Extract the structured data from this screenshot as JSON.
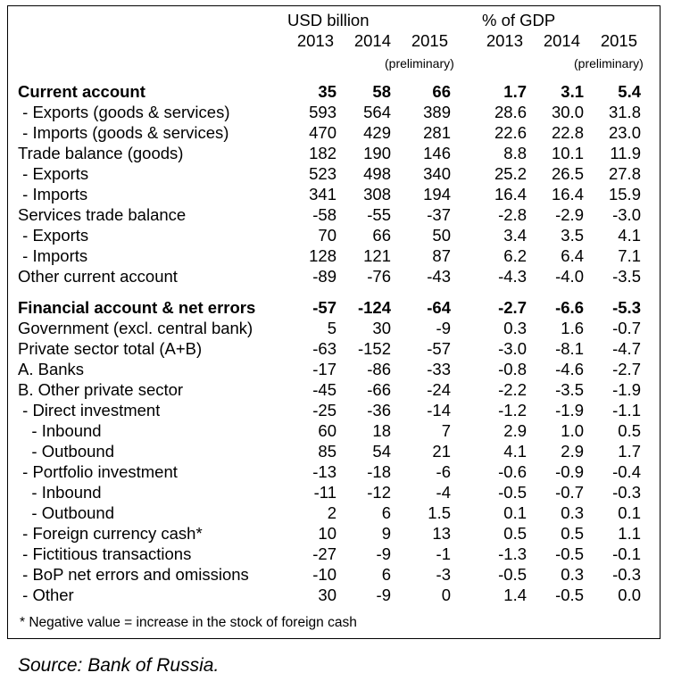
{
  "header": {
    "usd_label": "USD billion",
    "gdp_label": "% of GDP",
    "years": [
      "2013",
      "2014",
      "2015",
      "2013",
      "2014",
      "2015"
    ],
    "preliminary": "(preliminary)"
  },
  "columns_note": "USD billion: 2013, 2014, 2015; % of GDP: 2013, 2014, 2015",
  "rows": [
    {
      "label": "Current account",
      "bold": true,
      "values": [
        "35",
        "58",
        "66",
        "1.7",
        "3.1",
        "5.4"
      ]
    },
    {
      "label": " - Exports (goods & services)",
      "values": [
        "593",
        "564",
        "389",
        "28.6",
        "30.0",
        "31.8"
      ]
    },
    {
      "label": " - Imports (goods & services)",
      "values": [
        "470",
        "429",
        "281",
        "22.6",
        "22.8",
        "23.0"
      ]
    },
    {
      "label": "Trade balance (goods)",
      "values": [
        "182",
        "190",
        "146",
        "8.8",
        "10.1",
        "11.9"
      ]
    },
    {
      "label": " - Exports",
      "values": [
        "523",
        "498",
        "340",
        "25.2",
        "26.5",
        "27.8"
      ]
    },
    {
      "label": " - Imports",
      "values": [
        "341",
        "308",
        "194",
        "16.4",
        "16.4",
        "15.9"
      ]
    },
    {
      "label": "Services trade balance",
      "values": [
        "-58",
        "-55",
        "-37",
        "-2.8",
        "-2.9",
        "-3.0"
      ]
    },
    {
      "label": " - Exports",
      "values": [
        "70",
        "66",
        "50",
        "3.4",
        "3.5",
        "4.1"
      ]
    },
    {
      "label": " - Imports",
      "values": [
        "128",
        "121",
        "87",
        "6.2",
        "6.4",
        "7.1"
      ]
    },
    {
      "label": "Other current account",
      "values": [
        "-89",
        "-76",
        "-43",
        "-4.3",
        "-4.0",
        "-3.5"
      ]
    },
    {
      "label": "Financial account & net errors",
      "bold": true,
      "values": [
        "-57",
        "-124",
        "-64",
        "-2.7",
        "-6.6",
        "-5.3"
      ]
    },
    {
      "label": "Government (excl. central bank)",
      "values": [
        "5",
        "30",
        "-9",
        "0.3",
        "1.6",
        "-0.7"
      ]
    },
    {
      "label": "Private sector total (A+B)",
      "values": [
        "-63",
        "-152",
        "-57",
        "-3.0",
        "-8.1",
        "-4.7"
      ]
    },
    {
      "label": "A. Banks",
      "values": [
        "-17",
        "-86",
        "-33",
        "-0.8",
        "-4.6",
        "-2.7"
      ]
    },
    {
      "label": "B. Other private sector",
      "values": [
        "-45",
        "-66",
        "-24",
        "-2.2",
        "-3.5",
        "-1.9"
      ]
    },
    {
      "label": " - Direct investment",
      "values": [
        "-25",
        "-36",
        "-14",
        "-1.2",
        "-1.9",
        "-1.1"
      ]
    },
    {
      "label": "   - Inbound",
      "values": [
        "60",
        "18",
        "7",
        "2.9",
        "1.0",
        "0.5"
      ]
    },
    {
      "label": "   - Outbound",
      "values": [
        "85",
        "54",
        "21",
        "4.1",
        "2.9",
        "1.7"
      ]
    },
    {
      "label": " - Portfolio investment",
      "values": [
        "-13",
        "-18",
        "-6",
        "-0.6",
        "-0.9",
        "-0.4"
      ]
    },
    {
      "label": "   - Inbound",
      "values": [
        "-11",
        "-12",
        "-4",
        "-0.5",
        "-0.7",
        "-0.3"
      ]
    },
    {
      "label": "   - Outbound",
      "values": [
        "2",
        "6",
        "1.5",
        "0.1",
        "0.3",
        "0.1"
      ]
    },
    {
      "label": " - Foreign currency cash*",
      "values": [
        "10",
        "9",
        "13",
        "0.5",
        "0.5",
        "1.1"
      ]
    },
    {
      "label": " - Fictitious transactions",
      "values": [
        "-27",
        "-9",
        "-1",
        "-1.3",
        "-0.5",
        "-0.1"
      ]
    },
    {
      "label": " - BoP net errors and omissions",
      "values": [
        "-10",
        "6",
        "-3",
        "-0.5",
        "0.3",
        "-0.3"
      ]
    },
    {
      "label": " - Other",
      "values": [
        "30",
        "-9",
        "0",
        "1.4",
        "-0.5",
        "0.0"
      ]
    }
  ],
  "footnote": "* Negative value = increase in the stock of foreign cash",
  "source": "Source: Bank of Russia."
}
